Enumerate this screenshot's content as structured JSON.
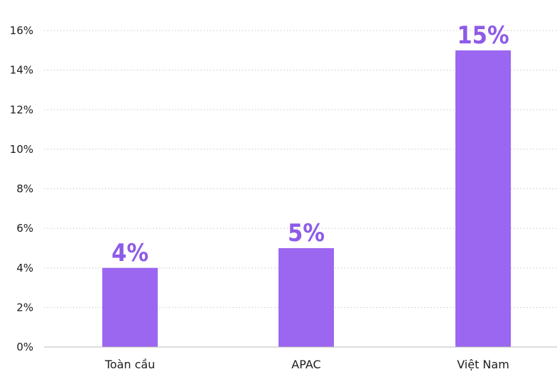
{
  "chart_data": {
    "type": "bar",
    "categories": [
      "Toàn cầu",
      "APAC",
      "Việt Nam"
    ],
    "values": [
      4,
      5,
      15
    ],
    "data_labels": [
      "4%",
      "5%",
      "15%"
    ],
    "ylim": [
      0,
      16
    ],
    "yticks": [
      0,
      2,
      4,
      6,
      8,
      10,
      12,
      14,
      16
    ],
    "ytick_labels": [
      "0%",
      "2%",
      "4%",
      "6%",
      "8%",
      "10%",
      "12%",
      "14%",
      "16%"
    ],
    "title": "",
    "xlabel": "",
    "ylabel": "",
    "grid": true,
    "colors": {
      "bar": "#9B66F0",
      "label": "#8E5BE8",
      "text": "#1c1c1c"
    }
  }
}
